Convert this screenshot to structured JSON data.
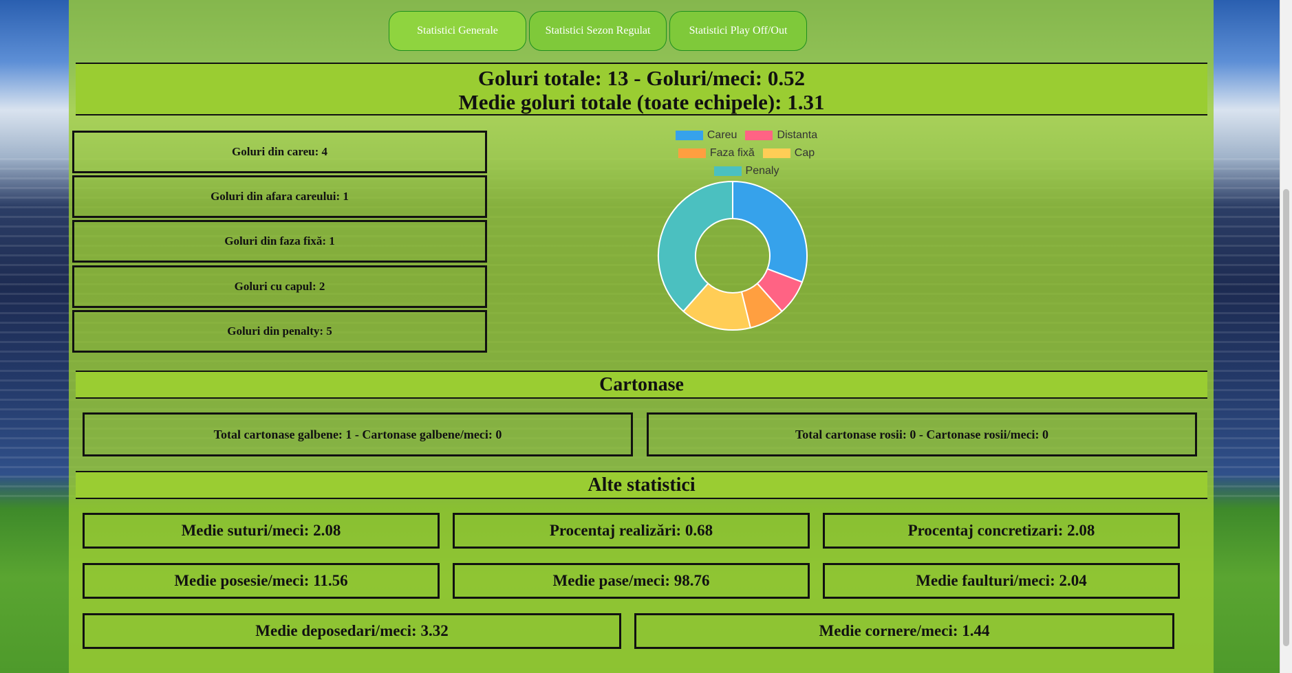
{
  "nav": {
    "tabs": [
      {
        "label": "Statistici Generale"
      },
      {
        "label": "Statistici Sezon Regulat"
      },
      {
        "label": "Statistici Play Off/Out"
      }
    ]
  },
  "goals_summary": {
    "line1": "Goluri totale: 13 - Goluri/meci: 0.52",
    "line2": "Medie goluri totale (toate echipele): 1.31"
  },
  "goal_types": [
    {
      "text": "Goluri din careu: 4"
    },
    {
      "text": "Goluri din afara careului: 1"
    },
    {
      "text": "Goluri din faza fixă: 1"
    },
    {
      "text": "Goluri cu capul: 2"
    },
    {
      "text": "Goluri din penalty: 5"
    }
  ],
  "cards": {
    "title": "Cartonase",
    "yellow": "Total cartonase galbene: 1 - Cartonase galbene/meci: 0",
    "red": "Total cartonase rosii: 0 - Cartonase rosii/meci: 0"
  },
  "other": {
    "title": "Alte statistici",
    "items": [
      {
        "text": "Medie suturi/meci: 2.08"
      },
      {
        "text": "Procentaj realizări: 0.68"
      },
      {
        "text": "Procentaj concretizari: 2.08"
      },
      {
        "text": "Medie posesie/meci: 11.56"
      },
      {
        "text": "Medie pase/meci: 98.76"
      },
      {
        "text": "Medie faulturi/meci: 2.04"
      },
      {
        "text": "Medie deposedari/meci: 3.32"
      },
      {
        "text": "Medie cornere/meci: 1.44"
      }
    ]
  },
  "chart_data": {
    "type": "pie",
    "variant": "doughnut",
    "legend_position": "top",
    "categories": [
      "Careu",
      "Distanta",
      "Faza fixă",
      "Cap",
      "Penaly"
    ],
    "values": [
      4,
      1,
      1,
      2,
      5
    ],
    "colors": [
      "#36a2eb",
      "#ff6384",
      "#ff9f40",
      "#ffcd56",
      "#4bc0c0"
    ]
  }
}
